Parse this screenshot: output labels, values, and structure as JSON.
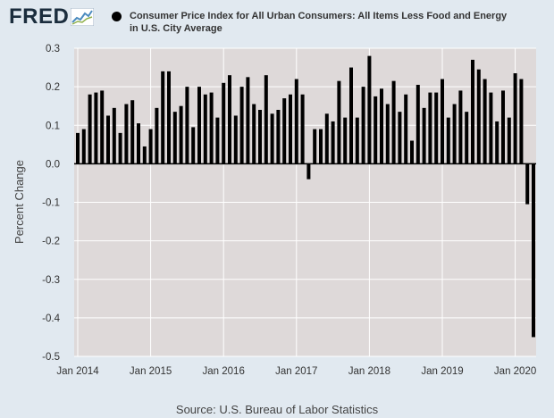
{
  "header": {
    "logo_text": "FRED",
    "logo_icon": "line-graph-icon",
    "legend_label": "Consumer Price Index for All Urban Consumers: All Items Less Food and Energy in U.S. City Average",
    "legend_color": "#000000"
  },
  "source": "Source: U.S. Bureau of Labor Statistics",
  "chart_data": {
    "type": "bar",
    "title": "",
    "xlabel": "",
    "ylabel": "Percent Change",
    "ylim": [
      -0.5,
      0.3
    ],
    "yticks": [
      "0.3",
      "0.2",
      "0.1",
      "0.0",
      "-0.1",
      "-0.2",
      "-0.3",
      "-0.4",
      "-0.5"
    ],
    "ytick_values": [
      0.3,
      0.2,
      0.1,
      0.0,
      -0.1,
      -0.2,
      -0.3,
      -0.4,
      -0.5
    ],
    "xticks": [
      {
        "label": "Jan 2014",
        "date": "2014-01"
      },
      {
        "label": "Jan 2015",
        "date": "2015-01"
      },
      {
        "label": "Jan 2016",
        "date": "2016-01"
      },
      {
        "label": "Jan 2017",
        "date": "2017-01"
      },
      {
        "label": "Jan 2018",
        "date": "2018-01"
      },
      {
        "label": "Jan 2019",
        "date": "2019-01"
      },
      {
        "label": "Jan 2020",
        "date": "2020-01"
      }
    ],
    "bar_color": "#000000",
    "plot_background": "#ded9d9",
    "grid": true,
    "series": [
      {
        "name": "Consumer Price Index for All Urban Consumers: All Items Less Food and Energy in U.S. City Average",
        "x": [
          "2014-01",
          "2014-02",
          "2014-03",
          "2014-04",
          "2014-05",
          "2014-06",
          "2014-07",
          "2014-08",
          "2014-09",
          "2014-10",
          "2014-11",
          "2014-12",
          "2015-01",
          "2015-02",
          "2015-03",
          "2015-04",
          "2015-05",
          "2015-06",
          "2015-07",
          "2015-08",
          "2015-09",
          "2015-10",
          "2015-11",
          "2015-12",
          "2016-01",
          "2016-02",
          "2016-03",
          "2016-04",
          "2016-05",
          "2016-06",
          "2016-07",
          "2016-08",
          "2016-09",
          "2016-10",
          "2016-11",
          "2016-12",
          "2017-01",
          "2017-02",
          "2017-03",
          "2017-04",
          "2017-05",
          "2017-06",
          "2017-07",
          "2017-08",
          "2017-09",
          "2017-10",
          "2017-11",
          "2017-12",
          "2018-01",
          "2018-02",
          "2018-03",
          "2018-04",
          "2018-05",
          "2018-06",
          "2018-07",
          "2018-08",
          "2018-09",
          "2018-10",
          "2018-11",
          "2018-12",
          "2019-01",
          "2019-02",
          "2019-03",
          "2019-04",
          "2019-05",
          "2019-06",
          "2019-07",
          "2019-08",
          "2019-09",
          "2019-10",
          "2019-11",
          "2019-12",
          "2020-01",
          "2020-02",
          "2020-03",
          "2020-04"
        ],
        "values": [
          0.08,
          0.09,
          0.18,
          0.185,
          0.19,
          0.125,
          0.145,
          0.08,
          0.155,
          0.165,
          0.105,
          0.045,
          0.09,
          0.145,
          0.24,
          0.24,
          0.135,
          0.15,
          0.2,
          0.095,
          0.2,
          0.18,
          0.185,
          0.12,
          0.21,
          0.23,
          0.125,
          0.2,
          0.225,
          0.155,
          0.14,
          0.23,
          0.13,
          0.14,
          0.17,
          0.18,
          0.22,
          0.18,
          -0.04,
          0.09,
          0.09,
          0.13,
          0.11,
          0.215,
          0.12,
          0.25,
          0.12,
          0.2,
          0.28,
          0.175,
          0.195,
          0.155,
          0.215,
          0.135,
          0.18,
          0.06,
          0.205,
          0.145,
          0.185,
          0.185,
          0.22,
          0.12,
          0.155,
          0.19,
          0.135,
          0.27,
          0.245,
          0.22,
          0.185,
          0.11,
          0.19,
          0.12,
          0.235,
          0.22,
          -0.105,
          -0.45
        ]
      }
    ],
    "source": "Source: U.S. Bureau of Labor Statistics"
  }
}
